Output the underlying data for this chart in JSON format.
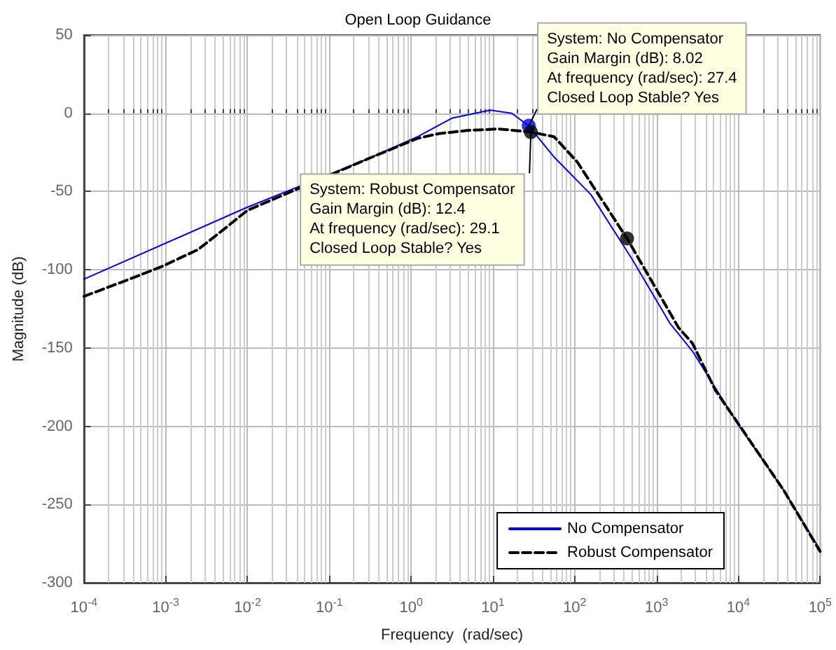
{
  "chart_data": {
    "type": "line",
    "title": "Open Loop Guidance",
    "xlabel": "Frequency  (rad/sec)",
    "ylabel": "Magnitude (dB)",
    "log": "x",
    "grid": true,
    "legend": "bottom right",
    "xlim": [
      0.0001,
      100000
    ],
    "ylim": [
      -300,
      50
    ],
    "xticks": [
      {
        "value": 0.0001,
        "label": "10$^{-4}$"
      },
      {
        "value": 0.001,
        "label": "10$^{-3}$"
      },
      {
        "value": 0.01,
        "label": "10$^{-2}$"
      },
      {
        "value": 0.1,
        "label": "10$^{-1}$"
      },
      {
        "value": 1,
        "label": "10$^{0}$"
      },
      {
        "value": 10,
        "label": "10$^{1}$"
      },
      {
        "value": 100,
        "label": "10$^{2}$"
      },
      {
        "value": 1000,
        "label": "10$^{3}$"
      },
      {
        "value": 10000,
        "label": "10$^{4}$"
      },
      {
        "value": 100000,
        "label": "10$^{5}$"
      }
    ],
    "yticks": [
      -300,
      -250,
      -200,
      -150,
      -100,
      -50,
      0,
      50
    ],
    "series": [
      {
        "name": "No Compensator",
        "type": "line",
        "color": "#0000ff",
        "line_style": "solid",
        "marker": "none",
        "x": [
          0.0001,
          0.01,
          0.3,
          1.2,
          3.2,
          9.3,
          17,
          27.4,
          56,
          158,
          500,
          1450,
          2750,
          10000,
          36000,
          100000
        ],
        "values": [
          -106,
          -60,
          -29,
          -15,
          -3,
          2,
          0,
          -8,
          -28,
          -52,
          -93,
          -134,
          -152,
          -199,
          -241,
          -279
        ]
      },
      {
        "name": "Robust Compensator",
        "type": "line",
        "color": "#000000",
        "line_style": "dashed",
        "marker": "none",
        "x": [
          0.0001,
          0.00036,
          0.00089,
          0.0025,
          0.0049,
          0.01,
          0.3,
          1.2,
          2.2,
          4.8,
          11.7,
          29.1,
          56,
          107,
          436,
          1860,
          2750,
          5250,
          36000,
          100000
        ],
        "values": [
          -117,
          -106,
          -98,
          -87,
          -75,
          -62,
          -29,
          -16,
          -13,
          -11,
          -10,
          -12,
          -15,
          -31,
          -80,
          -137,
          -147,
          -177,
          -241,
          -280
        ]
      },
      {
        "type": "scatter",
        "color": "#0000ff",
        "marker": "circle",
        "x": [
          27.4
        ],
        "values": [
          -8
        ]
      },
      {
        "type": "scatter",
        "color": "#000000",
        "marker": "circle",
        "x": [
          29.1,
          436
        ],
        "values": [
          -12,
          -80
        ]
      }
    ],
    "annotations": [
      {
        "text": "System: No Compensator\nGain Margin (dB): 8.02\nAt frequency (rad/sec): 27.4\nClosed Loop Stable? Yes",
        "x": 27.4,
        "y": -8.02
      },
      {
        "text": "System: Robust Compensator\nGain Margin (dB): 12.4\nAt frequency (rad/sec): 29.1\nClosed Loop Stable? Yes",
        "x": 29.1,
        "y": -12.4
      }
    ]
  }
}
